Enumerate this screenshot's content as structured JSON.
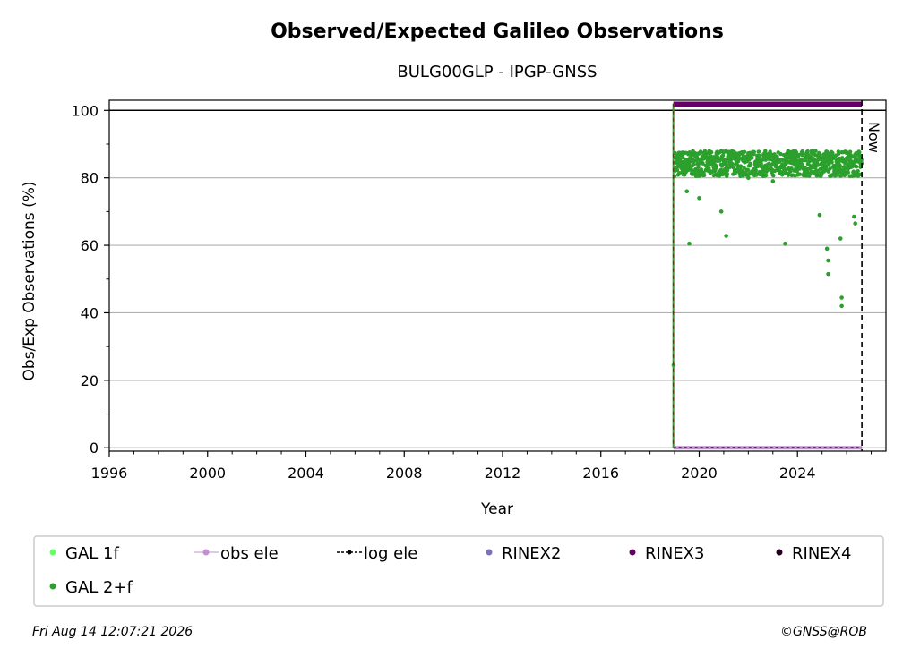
{
  "chart_data": {
    "type": "scatter",
    "title": "Observed/Expected Galileo Observations",
    "subtitle": "BULG00GLP - IPGP-GNSS",
    "xlabel": "Year",
    "ylabel": "Obs/Exp Observations (%)",
    "xlim": [
      1996,
      2027.6
    ],
    "ylim": [
      -1,
      103
    ],
    "xticks": [
      "1996",
      "2000",
      "2004",
      "2008",
      "2012",
      "2016",
      "2020",
      "2024"
    ],
    "yticks": [
      "0",
      "20",
      "40",
      "60",
      "80",
      "100"
    ],
    "grid": "horizontal",
    "reference_line_y": 100,
    "now_label": "Now",
    "now_x": 2026.62,
    "start_x": 2018.95,
    "legend_placement": "bottom",
    "legend": [
      {
        "label": "GAL 1f",
        "color": "#66ff66",
        "style": "dot"
      },
      {
        "label": "obs ele",
        "color": "#c38fd4",
        "style": "line-dot"
      },
      {
        "label": "log ele",
        "color": "#000000",
        "style": "dashed-dot"
      },
      {
        "label": "RINEX2",
        "color": "#8070b8",
        "style": "dot"
      },
      {
        "label": "RINEX3",
        "color": "#660066",
        "style": "dot"
      },
      {
        "label": "RINEX4",
        "color": "#200020",
        "style": "dot"
      },
      {
        "label": "GAL 2+f",
        "color": "#2ca02c",
        "style": "dot"
      }
    ],
    "series": [
      {
        "name": "GAL 2+f",
        "color": "#2ca02c",
        "points": [
          [
            2018.96,
            24.5
          ],
          [
            2019.1,
            86
          ],
          [
            2019.3,
            84
          ],
          [
            2019.5,
            76
          ],
          [
            2019.6,
            60.5
          ],
          [
            2019.8,
            82
          ],
          [
            2020.0,
            74
          ],
          [
            2020.3,
            86
          ],
          [
            2020.7,
            83
          ],
          [
            2020.9,
            70
          ],
          [
            2021.0,
            85
          ],
          [
            2021.1,
            62.8
          ],
          [
            2021.5,
            84
          ],
          [
            2022.0,
            80
          ],
          [
            2022.5,
            84
          ],
          [
            2023.0,
            79
          ],
          [
            2023.5,
            60.5
          ],
          [
            2023.5,
            85
          ],
          [
            2024.0,
            83
          ],
          [
            2024.5,
            85
          ],
          [
            2024.9,
            69
          ],
          [
            2025.0,
            84
          ],
          [
            2025.2,
            59
          ],
          [
            2025.25,
            55.5
          ],
          [
            2025.25,
            51.5
          ],
          [
            2025.5,
            82
          ],
          [
            2025.75,
            62
          ],
          [
            2025.8,
            44.5
          ],
          [
            2025.8,
            42
          ],
          [
            2026.0,
            83
          ],
          [
            2026.3,
            68.5
          ],
          [
            2026.35,
            66.5
          ],
          [
            2026.5,
            85
          ]
        ],
        "band": {
          "x": [
            2018.95,
            2026.62
          ],
          "typical_range": [
            78,
            88
          ]
        }
      },
      {
        "name": "RINEX3",
        "color": "#660066",
        "x_range": [
          2018.95,
          2026.62
        ],
        "y": 101.8
      },
      {
        "name": "obs ele",
        "color": "#c38fd4",
        "x_range": [
          2018.95,
          2026.62
        ],
        "y": 0
      }
    ]
  },
  "footer": {
    "timestamp": "Fri Aug 14 12:07:21 2026",
    "credit": "©GNSS@ROB"
  }
}
